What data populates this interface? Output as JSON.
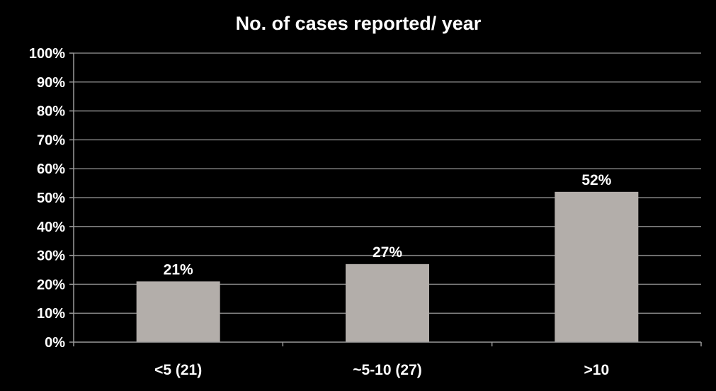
{
  "chart_data": {
    "type": "bar",
    "title": "No. of cases reported/ year",
    "xlabel": "",
    "ylabel": "",
    "categories": [
      "<5 (21)",
      "~5-10 (27)",
      ">10"
    ],
    "values": [
      21,
      27,
      52
    ],
    "data_labels": [
      "21%",
      "27%",
      "52%"
    ],
    "ylim": [
      0,
      100
    ],
    "y_ticks": [
      0,
      10,
      20,
      30,
      40,
      50,
      60,
      70,
      80,
      90,
      100
    ],
    "y_tick_labels": [
      "0%",
      "10%",
      "20%",
      "30%",
      "40%",
      "50%",
      "60%",
      "70%",
      "80%",
      "90%",
      "100%"
    ],
    "grid": true,
    "legend": "none",
    "colors": {
      "background": "#000000",
      "bar": "#b3aeaa",
      "grid": "#808080",
      "axis": "#9a9a9a",
      "text": "#ffffff"
    }
  }
}
